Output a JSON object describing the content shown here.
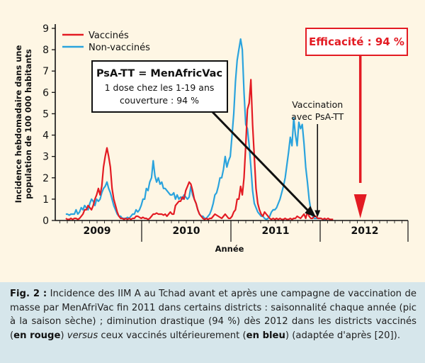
{
  "chart_data": {
    "type": "line",
    "ylabel_line1": "Incidence hebdomadaire dans une",
    "ylabel_line2": "population de 100 000 habitants",
    "xlabel": "Année",
    "ylim": [
      0,
      9
    ],
    "y_ticks": [
      "0",
      "1",
      "2",
      "3",
      "4",
      "5",
      "6",
      "7",
      "8",
      "9"
    ],
    "years": [
      "2009",
      "2010",
      "2011",
      "2012"
    ],
    "colors": {
      "vaccinated": "#e31b23",
      "unvaccinated": "#2aa3dd",
      "arrow_red": "#e31b23"
    },
    "legend": [
      {
        "name": "Vaccinés",
        "color": "#e31b23"
      },
      {
        "name": "Non-vaccinés",
        "color": "#2aa3dd"
      }
    ],
    "x_start": 2008.65,
    "x_end": 2012.45,
    "week_step": 0.0192,
    "series": [
      {
        "name": "Vaccinés",
        "color": "#e31b23",
        "values": [
          0.1,
          0.05,
          0.05,
          0.1,
          0.05,
          0.1,
          0.1,
          0.05,
          0.1,
          0.2,
          0.3,
          0.5,
          0.5,
          0.7,
          0.6,
          0.5,
          0.7,
          1.0,
          1.2,
          1.5,
          1.2,
          1.6,
          2.5,
          3.0,
          3.4,
          3.0,
          2.5,
          1.5,
          1.0,
          0.7,
          0.4,
          0.2,
          0.1,
          0.1,
          0.05,
          0.1,
          0.05,
          0.1,
          0.05,
          0.1,
          0.1,
          0.2,
          0.2,
          0.15,
          0.1,
          0.15,
          0.1,
          0.1,
          0.05,
          0.1,
          0.2,
          0.3,
          0.3,
          0.35,
          0.3,
          0.3,
          0.3,
          0.25,
          0.3,
          0.2,
          0.3,
          0.4,
          0.3,
          0.3,
          0.7,
          0.8,
          0.9,
          0.9,
          1.1,
          1.0,
          1.4,
          1.6,
          1.8,
          1.7,
          1.4,
          1.0,
          0.8,
          0.5,
          0.3,
          0.2,
          0.1,
          0.05,
          0.1,
          0.05,
          0.1,
          0.1,
          0.2,
          0.3,
          0.25,
          0.2,
          0.15,
          0.1,
          0.2,
          0.3,
          0.2,
          0.1,
          0.1,
          0.2,
          0.4,
          0.5,
          1.0,
          1.0,
          1.6,
          1.2,
          2.0,
          3.5,
          5.2,
          5.5,
          6.6,
          4.5,
          3.0,
          1.5,
          0.8,
          0.5,
          0.3,
          0.2,
          0.4,
          0.3,
          0.2,
          0.1,
          0.05,
          0.1,
          0.05,
          0.1,
          0.05,
          0.1,
          0.05,
          0.05,
          0.1,
          0.05,
          0.05,
          0.1,
          0.05,
          0.1,
          0.1,
          0.2,
          0.15,
          0.1,
          0.2,
          0.3,
          0.1,
          0.4,
          0.2,
          0.1,
          0.1,
          0.2,
          0.2,
          0.1,
          0.1,
          0.1,
          0.05,
          0.1,
          0.05,
          0.1,
          0.05,
          0.05,
          0.05
        ]
      },
      {
        "name": "Non-vaccinés",
        "color": "#2aa3dd",
        "values": [
          0.3,
          0.3,
          0.25,
          0.3,
          0.3,
          0.3,
          0.5,
          0.3,
          0.4,
          0.6,
          0.5,
          0.7,
          0.6,
          0.5,
          0.8,
          1.0,
          0.9,
          0.7,
          1.0,
          0.9,
          1.0,
          1.3,
          1.5,
          1.6,
          1.8,
          1.5,
          1.3,
          1.0,
          0.7,
          0.5,
          0.3,
          0.2,
          0.2,
          0.1,
          0.1,
          0.1,
          0.15,
          0.1,
          0.2,
          0.3,
          0.3,
          0.5,
          0.4,
          0.5,
          0.7,
          1.0,
          1.0,
          1.5,
          1.4,
          1.8,
          2.0,
          2.8,
          2.1,
          1.8,
          2.0,
          1.7,
          1.8,
          1.5,
          1.5,
          1.4,
          1.3,
          1.2,
          1.2,
          1.3,
          1.0,
          1.2,
          1.0,
          1.1,
          1.0,
          1.2,
          1.1,
          1.0,
          1.1,
          1.6,
          1.2,
          1.0,
          0.8,
          0.5,
          0.3,
          0.2,
          0.2,
          0.1,
          0.1,
          0.2,
          0.3,
          0.5,
          0.8,
          1.2,
          1.3,
          1.6,
          2.0,
          2.0,
          2.4,
          3.0,
          2.5,
          2.8,
          3.0,
          4.0,
          5.0,
          6.5,
          7.5,
          8.0,
          8.5,
          8.0,
          6.0,
          4.5,
          4.3,
          3.5,
          2.5,
          1.4,
          0.8,
          0.6,
          0.4,
          0.3,
          0.2,
          0.2,
          0.1,
          0.05,
          0.1,
          0.2,
          0.4,
          0.5,
          0.5,
          0.6,
          0.8,
          1.0,
          1.3,
          1.6,
          2.0,
          2.6,
          3.2,
          3.9,
          3.5,
          4.8,
          4.0,
          3.5,
          4.6,
          4.3,
          4.5,
          3.6,
          2.5,
          1.8,
          1.0,
          0.5,
          0.2,
          0.1,
          0.1,
          0.1,
          0.1,
          0.1,
          0.05,
          0.05,
          0.05
        ]
      }
    ],
    "vaccination_x": 2011.47,
    "efficacy_arrow_x": 2011.95,
    "box": {
      "title": "PsA-TT = MenAfricVac",
      "line1": "1 dose chez les 1-19 ans",
      "line2": "couverture : 94 %"
    },
    "efficacy_label": "Efficacité : 94 %",
    "vaccination_label_line1": "Vaccination",
    "vaccination_label_line2": "avec PsA-TT"
  },
  "caption": {
    "fig_label": "Fig. 2 :",
    "part1": " Incidence des IIM A au Tchad avant et après une campagne de vaccination de masse par MenAfriVac fin 2011 dans certains districts : saisonnalité chaque année (pic à la saison sèche) ; diminution drastique (94 %) dès 2012 dans les districts vaccinés (",
    "bold_red": "en rouge",
    "part2": ") ",
    "versus": "versus",
    "part3": " ceux vaccinés ultérieurement (",
    "bold_blue": "en bleu",
    "part4": ") (adaptée d'après [20])."
  }
}
